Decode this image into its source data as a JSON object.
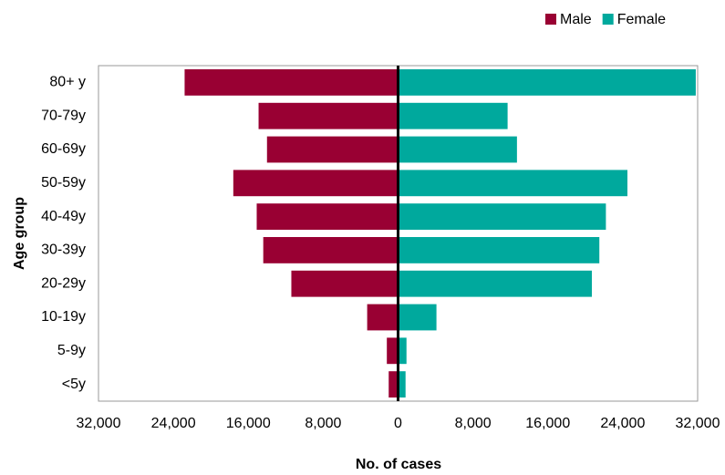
{
  "chart_data": {
    "type": "pyramid",
    "xlabel": "No. of cases",
    "ylabel": "Age group",
    "categories": [
      "80+ y",
      "70-79y",
      "60-69y",
      "50-59y",
      "40-49y",
      "30-39y",
      "20-29y",
      "10-19y",
      "5-9y",
      "<5y"
    ],
    "series": [
      {
        "name": "Male",
        "color": "#990033",
        "side": "left",
        "values": [
          22800,
          14900,
          14000,
          17600,
          15100,
          14400,
          11400,
          3300,
          1200,
          1000
        ]
      },
      {
        "name": "Female",
        "color": "#00a99d",
        "side": "right",
        "values": [
          31800,
          11700,
          12700,
          24500,
          22200,
          21500,
          20700,
          4100,
          900,
          800
        ]
      }
    ],
    "xlim": [
      0,
      32000
    ],
    "left_xticks": [
      {
        "value": 32000,
        "label": "32,000"
      },
      {
        "value": 24000,
        "label": "24,000"
      },
      {
        "value": 16000,
        "label": "16,000"
      },
      {
        "value": 8000,
        "label": "8,000"
      }
    ],
    "xticks": [
      0,
      {
        "value": 8000,
        "label": "8,000"
      },
      {
        "value": 16000,
        "label": "16,000"
      },
      {
        "value": 24000,
        "label": "24,000"
      },
      {
        "value": 32000,
        "label": "32,000"
      }
    ],
    "legend": "top-right"
  }
}
